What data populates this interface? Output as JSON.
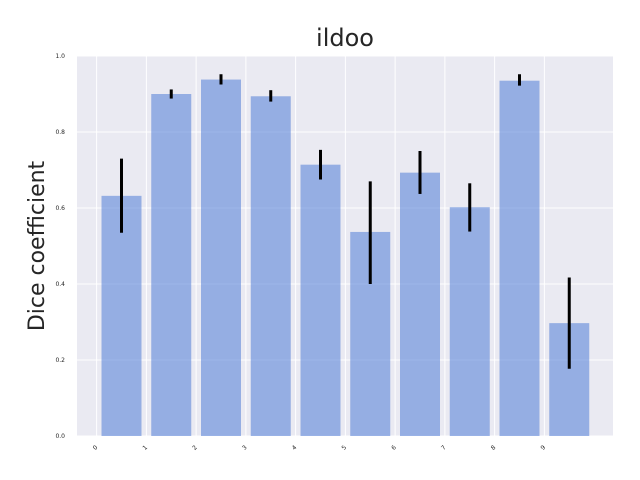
{
  "chart_data": {
    "type": "bar",
    "title": "ildoo",
    "xlabel": "",
    "ylabel": "Dice coefficient",
    "categories": [
      "0",
      "1",
      "2",
      "3",
      "4",
      "5",
      "6",
      "7",
      "8",
      "9"
    ],
    "values": [
      0.632,
      0.9,
      0.938,
      0.894,
      0.714,
      0.537,
      0.693,
      0.602,
      0.935,
      0.297
    ],
    "error_low": [
      0.535,
      0.888,
      0.925,
      0.88,
      0.675,
      0.4,
      0.637,
      0.538,
      0.922,
      0.177
    ],
    "error_high": [
      0.73,
      0.912,
      0.952,
      0.91,
      0.753,
      0.67,
      0.75,
      0.665,
      0.952,
      0.417
    ],
    "ylim": [
      0,
      1.0
    ],
    "yticks": [
      "0.0",
      "0.2",
      "0.4",
      "0.6",
      "0.8",
      "1.0"
    ],
    "grid": true,
    "bar_color": "#5b86d8",
    "bar_opacity": 0.6,
    "error_color": "#000000",
    "background_color": "#eaeaf2",
    "grid_color": "#ffffff"
  }
}
